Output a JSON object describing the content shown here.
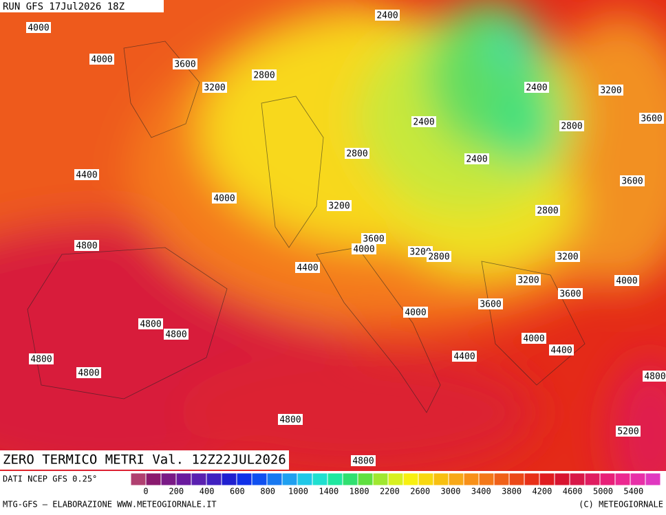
{
  "header": {
    "run": "RUN GFS 17Jul2026 18Z",
    "title": "ZERO TERMICO METRI Val. 12Z22JUL2026"
  },
  "contour_labels": [
    "4000",
    "2400",
    "4000",
    "3600",
    "2800",
    "3200",
    "2400",
    "3200",
    "2400",
    "2800",
    "3600",
    "2800",
    "2400",
    "4400",
    "3600",
    "4000",
    "3200",
    "2800",
    "4800",
    "3600",
    "4000",
    "3200",
    "2800",
    "3200",
    "4400",
    "3200",
    "4000",
    "3600",
    "3600",
    "4000",
    "4800",
    "4800",
    "4000",
    "4400",
    "4400",
    "4800",
    "4800",
    "4800",
    "4800",
    "5200",
    "4800"
  ],
  "legend": {
    "source": "DATI NCEP GFS 0.25°",
    "colors": [
      "#b04070",
      "#8a1a6e",
      "#7a1a86",
      "#6a1a9e",
      "#5a20b0",
      "#4020c0",
      "#2020d0",
      "#1030e8",
      "#1050f0",
      "#1878f0",
      "#20a0f0",
      "#20c8e8",
      "#20e0d0",
      "#20e8a0",
      "#30e070",
      "#60e040",
      "#a0e830",
      "#d8f020",
      "#f8f010",
      "#f8d810",
      "#f8c010",
      "#f8a818",
      "#f89018",
      "#f47818",
      "#f06018",
      "#ec4818",
      "#e83018",
      "#e01c20",
      "#d81430",
      "#d81848",
      "#e01c60",
      "#e82078",
      "#ec2890",
      "#e830a8",
      "#e038c0"
    ],
    "ticks": [
      "0",
      "200",
      "400",
      "600",
      "800",
      "1000",
      "1400",
      "1800",
      "2200",
      "2600",
      "3000",
      "3400",
      "3800",
      "4200",
      "4600",
      "5000",
      "5400"
    ]
  },
  "footer": {
    "left": "MTG-GFS — ELABORAZIONE WWW.METEOGIORNALE.IT",
    "right": "(C) METEOGIORNALE"
  }
}
